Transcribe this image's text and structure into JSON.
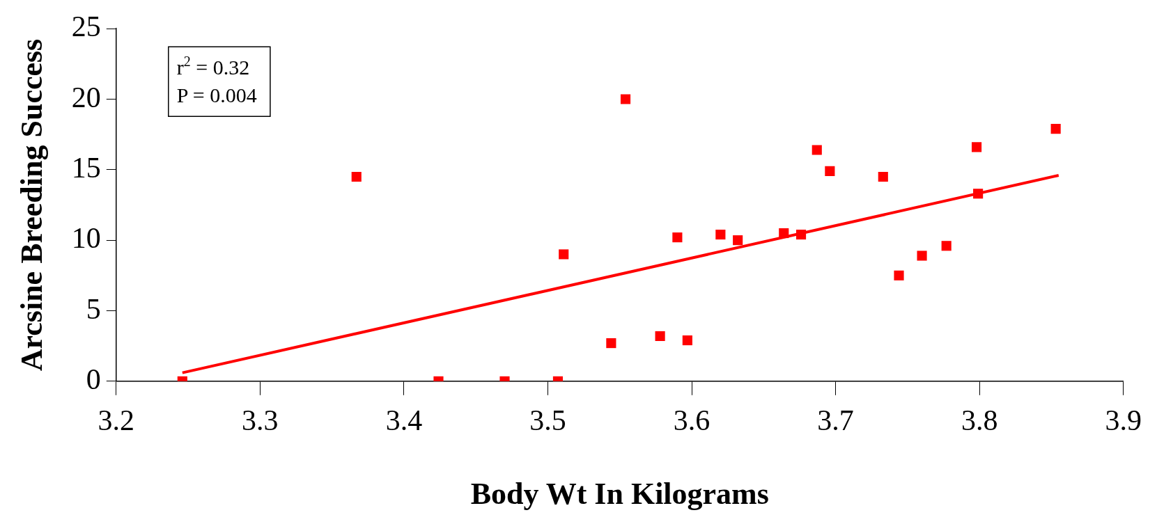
{
  "chart_data": {
    "type": "scatter",
    "xlabel": "Body Wt In Kilograms",
    "ylabel": "Arcsine Breeding Success",
    "xlim": [
      3.2,
      3.9
    ],
    "xticks": [
      3.2,
      3.3,
      3.4,
      3.5,
      3.6,
      3.7,
      3.8,
      3.9
    ],
    "ylim": [
      0,
      25
    ],
    "yticks": [
      0,
      5,
      10,
      15,
      20,
      25
    ],
    "grid": false,
    "legend": false,
    "marker": "square",
    "annotations": [
      "r$^{2}$ = 0.32",
      "P = 0.004"
    ],
    "series": [
      {
        "type": "scatter",
        "color": "#ff0000",
        "x": [
          3.246,
          3.367,
          3.424,
          3.47,
          3.507,
          3.511,
          3.544,
          3.554,
          3.578,
          3.59,
          3.597,
          3.62,
          3.632,
          3.664,
          3.676,
          3.687,
          3.696,
          3.733,
          3.744,
          3.76,
          3.777,
          3.798,
          3.799,
          3.853
        ],
        "values": [
          0,
          14.5,
          0,
          0,
          0,
          9,
          2.7,
          20,
          3.2,
          10.2,
          2.9,
          10.4,
          10,
          10.5,
          10.4,
          16.4,
          14.9,
          14.5,
          7.5,
          8.9,
          9.6,
          16.6,
          13.3,
          17.9
        ]
      },
      {
        "type": "line",
        "color": "#ff0000",
        "marker": "none",
        "line_style": "solid",
        "x": [
          3.246,
          3.855
        ],
        "values": [
          0.6,
          14.6
        ]
      }
    ]
  }
}
